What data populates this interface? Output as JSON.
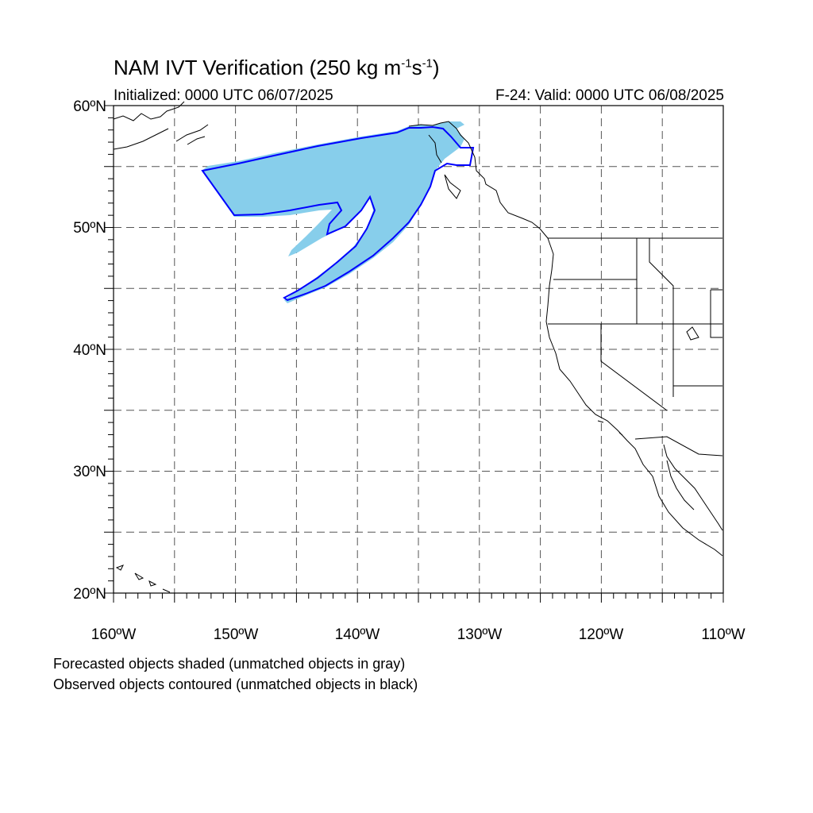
{
  "title": {
    "main": "NAM IVT Verification (250 kg m",
    "exp1": "-1",
    "mid": "s",
    "exp2": "-1",
    "end": ")"
  },
  "subtitle": {
    "initialized": "Initialized: 0000 UTC 06/07/2025",
    "valid": "F-24: Valid: 0000 UTC 06/08/2025"
  },
  "map": {
    "lon_range": [
      -160,
      -110
    ],
    "lat_range": [
      20,
      60
    ],
    "grid_lon_step": 5,
    "grid_lat_step": 5,
    "lat_labels": [
      "20ºN",
      "30ºN",
      "40ºN",
      "50ºN",
      "60ºN"
    ],
    "lon_labels": [
      "160ºW",
      "150ºW",
      "140ºW",
      "130ºW",
      "120ºW",
      "110ºW"
    ],
    "forecast_fill_color": "#87ceeb",
    "observed_contour_color": "#0000ff",
    "coastline_color": "#000000",
    "grid": true
  },
  "notes": {
    "line1": "Forecasted objects shaded (unmatched objects in gray)",
    "line2": "Observed objects contoured (unmatched objects in black)"
  }
}
